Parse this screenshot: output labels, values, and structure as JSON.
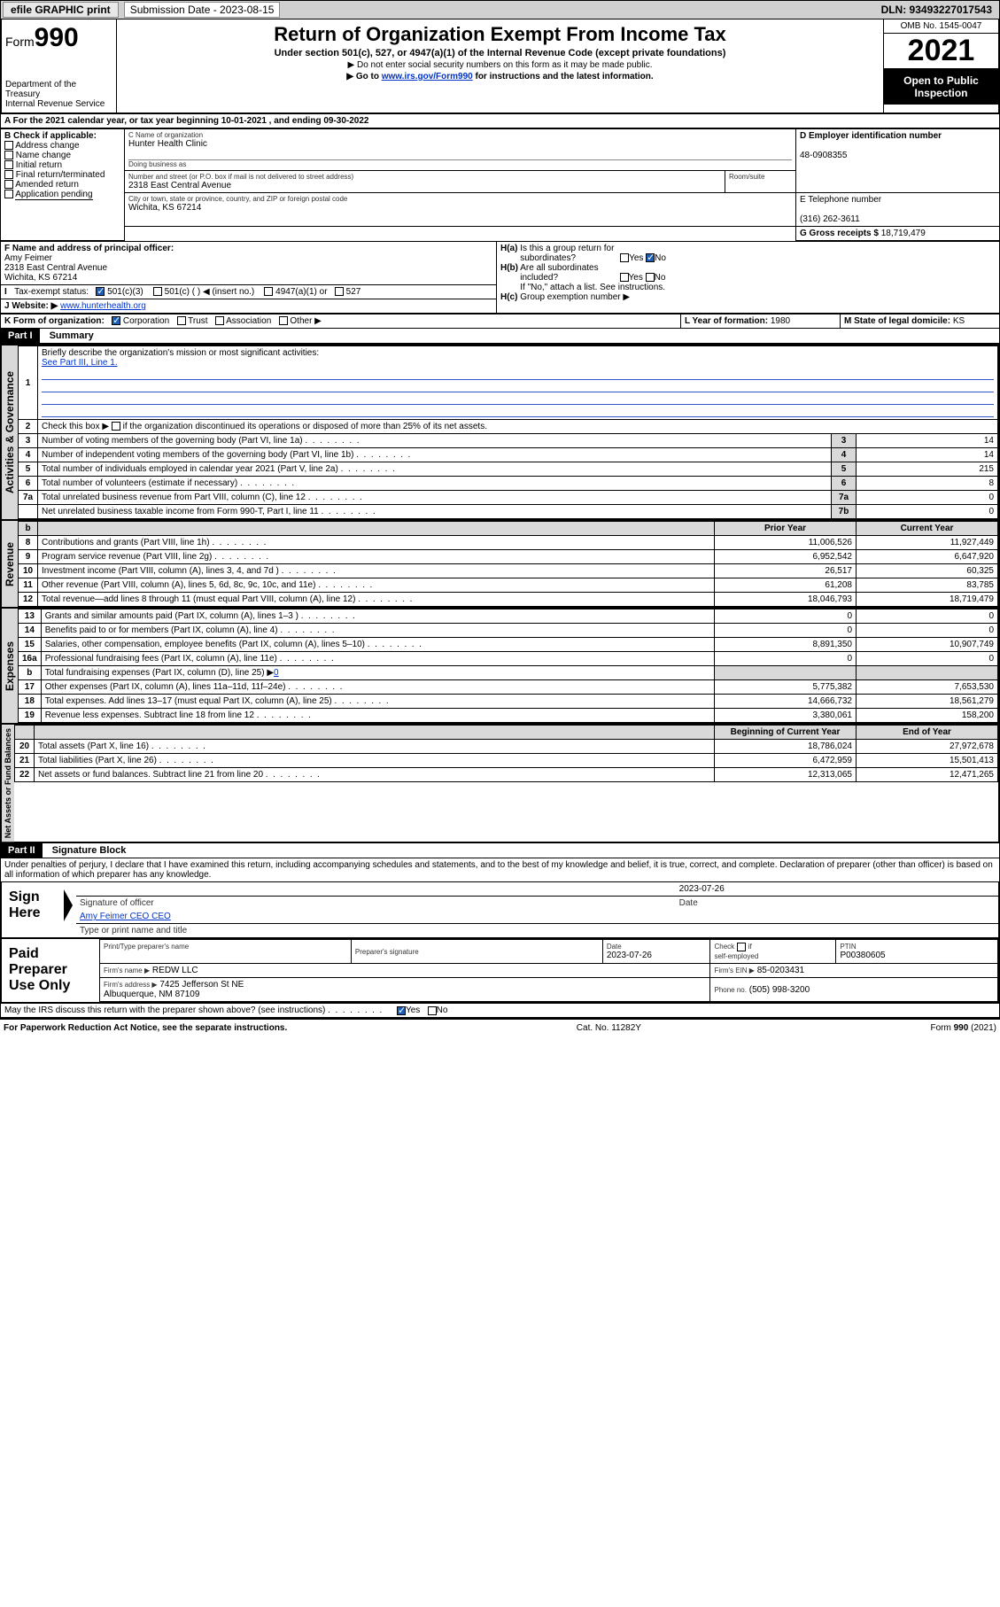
{
  "topbar": {
    "efile": "efile GRAPHIC print",
    "sub_label": "Submission Date - 2023-08-15",
    "dln": "DLN: 93493227017543"
  },
  "header": {
    "form_prefix": "Form",
    "form_num": "990",
    "dept": "Department of the Treasury\nInternal Revenue Service",
    "title": "Return of Organization Exempt From Income Tax",
    "subtitle": "Under section 501(c), 527, or 4947(a)(1) of the Internal Revenue Code (except private foundations)",
    "note1": "Do not enter social security numbers on this form as it may be made public.",
    "note2_pre": "Go to ",
    "note2_link": "www.irs.gov/Form990",
    "note2_post": " for instructions and the latest information.",
    "omb": "OMB No. 1545-0047",
    "year": "2021",
    "insp": "Open to Public Inspection"
  },
  "lineA": "For the 2021 calendar year, or tax year beginning 10-01-2021  , and ending 09-30-2022",
  "boxB": {
    "label": "B Check if applicable:",
    "opts": [
      "Address change",
      "Name change",
      "Initial return",
      "Final return/terminated",
      "Amended return",
      "Application pending"
    ]
  },
  "boxC": {
    "name_lbl": "C Name of organization",
    "name": "Hunter Health Clinic",
    "dba_lbl": "Doing business as",
    "dba": "",
    "street_lbl": "Number and street (or P.O. box if mail is not delivered to street address)",
    "street": "2318 East Central Avenue",
    "room_lbl": "Room/suite",
    "room": "",
    "city_lbl": "City or town, state or province, country, and ZIP or foreign postal code",
    "city": "Wichita, KS  67214"
  },
  "boxD": {
    "lbl": "D Employer identification number",
    "val": "48-0908355"
  },
  "boxE": {
    "lbl": "E Telephone number",
    "val": "(316) 262-3611"
  },
  "boxG": {
    "lbl": "G Gross receipts $",
    "val": "18,719,479"
  },
  "boxF": {
    "lbl": "F Name and address of principal officer:",
    "name": "Amy Feimer",
    "addr": "2318 East Central Avenue\nWichita, KS  67214"
  },
  "boxH": {
    "a_lbl": "H(a)  Is this a group return for subordinates?",
    "b_lbl": "H(b)  Are all subordinates included?",
    "b_note": "If \"No,\" attach a list. See instructions.",
    "c_lbl": "H(c)  Group exemption number ▶"
  },
  "boxI": {
    "lbl": "I   Tax-exempt status:",
    "opts": [
      "501(c)(3)",
      "501(c) (  ) ◀ (insert no.)",
      "4947(a)(1) or",
      "527"
    ]
  },
  "boxJ": {
    "lbl": "J   Website: ▶",
    "val": "www.hunterhealth.org"
  },
  "boxK": {
    "lbl": "K Form of organization:",
    "opts": [
      "Corporation",
      "Trust",
      "Association",
      "Other ▶"
    ]
  },
  "boxL": {
    "lbl": "L Year of formation:",
    "val": "1980"
  },
  "boxM": {
    "lbl": "M State of legal domicile:",
    "val": "KS"
  },
  "parts": {
    "p1": "Part I",
    "p1t": "Summary",
    "p2": "Part II",
    "p2t": "Signature Block"
  },
  "vlabels": {
    "ag": "Activities & Governance",
    "rev": "Revenue",
    "exp": "Expenses",
    "na": "Net Assets or Fund Balances"
  },
  "summary": {
    "l1": "Briefly describe the organization's mission or most significant activities:",
    "l1v": "See Part III, Line 1.",
    "l2": "Check this box ▶        if the organization discontinued its operations or disposed of more than 25% of its net assets.",
    "rows_gov": [
      {
        "n": "3",
        "t": "Number of voting members of the governing body (Part VI, line 1a)",
        "r": "3",
        "v": "14"
      },
      {
        "n": "4",
        "t": "Number of independent voting members of the governing body (Part VI, line 1b)",
        "r": "4",
        "v": "14"
      },
      {
        "n": "5",
        "t": "Total number of individuals employed in calendar year 2021 (Part V, line 2a)",
        "r": "5",
        "v": "215"
      },
      {
        "n": "6",
        "t": "Total number of volunteers (estimate if necessary)",
        "r": "6",
        "v": "8"
      },
      {
        "n": "7a",
        "t": "Total unrelated business revenue from Part VIII, column (C), line 12",
        "r": "7a",
        "v": "0"
      },
      {
        "n": "",
        "t": "Net unrelated business taxable income from Form 990-T, Part I, line 11",
        "r": "7b",
        "v": "0"
      }
    ],
    "col_hdrs": {
      "b": "b",
      "py": "Prior Year",
      "cy": "Current Year",
      "bcy": "Beginning of Current Year",
      "eoy": "End of Year"
    },
    "rows_rev": [
      {
        "n": "8",
        "t": "Contributions and grants (Part VIII, line 1h)",
        "p": "11,006,526",
        "c": "11,927,449"
      },
      {
        "n": "9",
        "t": "Program service revenue (Part VIII, line 2g)",
        "p": "6,952,542",
        "c": "6,647,920"
      },
      {
        "n": "10",
        "t": "Investment income (Part VIII, column (A), lines 3, 4, and 7d )",
        "p": "26,517",
        "c": "60,325"
      },
      {
        "n": "11",
        "t": "Other revenue (Part VIII, column (A), lines 5, 6d, 8c, 9c, 10c, and 11e)",
        "p": "61,208",
        "c": "83,785"
      },
      {
        "n": "12",
        "t": "Total revenue—add lines 8 through 11 (must equal Part VIII, column (A), line 12)",
        "p": "18,046,793",
        "c": "18,719,479"
      }
    ],
    "rows_exp": [
      {
        "n": "13",
        "t": "Grants and similar amounts paid (Part IX, column (A), lines 1–3 )",
        "p": "0",
        "c": "0"
      },
      {
        "n": "14",
        "t": "Benefits paid to or for members (Part IX, column (A), line 4)",
        "p": "0",
        "c": "0"
      },
      {
        "n": "15",
        "t": "Salaries, other compensation, employee benefits (Part IX, column (A), lines 5–10)",
        "p": "8,891,350",
        "c": "10,907,749"
      },
      {
        "n": "16a",
        "t": "Professional fundraising fees (Part IX, column (A), line 11e)",
        "p": "0",
        "c": "0"
      }
    ],
    "row_16b": {
      "n": "b",
      "t": "Total fundraising expenses (Part IX, column (D), line 25) ▶",
      "v": "0"
    },
    "rows_exp2": [
      {
        "n": "17",
        "t": "Other expenses (Part IX, column (A), lines 11a–11d, 11f–24e)",
        "p": "5,775,382",
        "c": "7,653,530"
      },
      {
        "n": "18",
        "t": "Total expenses. Add lines 13–17 (must equal Part IX, column (A), line 25)",
        "p": "14,666,732",
        "c": "18,561,279"
      },
      {
        "n": "19",
        "t": "Revenue less expenses. Subtract line 18 from line 12",
        "p": "3,380,061",
        "c": "158,200"
      }
    ],
    "rows_na": [
      {
        "n": "20",
        "t": "Total assets (Part X, line 16)",
        "p": "18,786,024",
        "c": "27,972,678"
      },
      {
        "n": "21",
        "t": "Total liabilities (Part X, line 26)",
        "p": "6,472,959",
        "c": "15,501,413"
      },
      {
        "n": "22",
        "t": "Net assets or fund balances. Subtract line 21 from line 20",
        "p": "12,313,065",
        "c": "12,471,265"
      }
    ]
  },
  "sig": {
    "decl": "Under penalties of perjury, I declare that I have examined this return, including accompanying schedules and statements, and to the best of my knowledge and belief, it is true, correct, and complete. Declaration of preparer (other than officer) is based on all information of which preparer has any knowledge.",
    "sign_here": "Sign Here",
    "sig_off": "Signature of officer",
    "date": "Date",
    "date_v": "2023-07-26",
    "typed": "Amy Feimer CEO CEO",
    "typed_lbl": "Type or print name and title",
    "paid": "Paid Preparer Use Only",
    "p_name_lbl": "Print/Type preparer's name",
    "p_sig_lbl": "Preparer's signature",
    "p_date_lbl": "Date",
    "p_date": "2023-07-26",
    "p_chk_lbl": "Check         if self-employed",
    "ptin_lbl": "PTIN",
    "ptin": "P00380605",
    "firm_name_lbl": "Firm's name    ▶",
    "firm_name": "REDW LLC",
    "firm_ein_lbl": "Firm's EIN ▶",
    "firm_ein": "85-0203431",
    "firm_addr_lbl": "Firm's address ▶",
    "firm_addr": "7425 Jefferson St NE\nAlbuquerque, NM  87109",
    "firm_phone_lbl": "Phone no.",
    "firm_phone": "(505) 998-3200",
    "discuss": "May the IRS discuss this return with the preparer shown above? (see instructions)"
  },
  "footer": {
    "l": "For Paperwork Reduction Act Notice, see the separate instructions.",
    "c": "Cat. No. 11282Y",
    "r": "Form 990 (2021)"
  },
  "yn": {
    "yes": "Yes",
    "no": "No"
  }
}
